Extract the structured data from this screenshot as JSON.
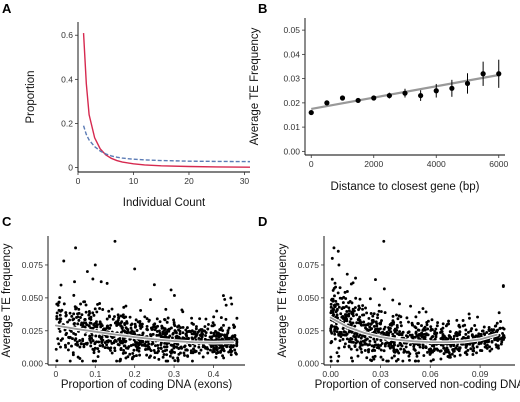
{
  "chart_data": [
    {
      "panel": "A",
      "type": "line",
      "title": "",
      "xlabel": "Individual Count",
      "ylabel": "Proportion",
      "xlim": [
        0,
        31
      ],
      "ylim": [
        -0.02,
        0.66
      ],
      "x_ticks": [
        0,
        10,
        20,
        30
      ],
      "y_ticks": [
        0.0,
        0.2,
        0.4,
        0.6
      ],
      "grid": false,
      "legend": "none",
      "series": [
        {
          "color": "#d6294f",
          "dash": "solid",
          "x": [
            1,
            1.5,
            2,
            3,
            4,
            5,
            6,
            7,
            8,
            10,
            12,
            15,
            20,
            25,
            31
          ],
          "y": [
            0.61,
            0.38,
            0.24,
            0.135,
            0.085,
            0.058,
            0.042,
            0.032,
            0.025,
            0.017,
            0.012,
            0.008,
            0.005,
            0.003,
            0.002
          ]
        },
        {
          "color": "#5b7bb5",
          "dash": "dashed",
          "x": [
            1,
            1.5,
            2,
            3,
            4,
            5,
            6,
            7,
            8,
            10,
            12,
            15,
            20,
            25,
            31
          ],
          "y": [
            0.19,
            0.15,
            0.125,
            0.095,
            0.075,
            0.062,
            0.053,
            0.047,
            0.043,
            0.038,
            0.035,
            0.032,
            0.029,
            0.028,
            0.027
          ]
        }
      ]
    },
    {
      "panel": "B",
      "type": "scatter",
      "title": "",
      "xlabel": "Distance to closest gene (bp)",
      "ylabel": "Average TE Frequency",
      "xlim": [
        -200,
        6200
      ],
      "ylim": [
        -0.0015,
        0.055
      ],
      "x_ticks": [
        0,
        2000,
        4000,
        6000
      ],
      "y_ticks": [
        0.0,
        0.01,
        0.02,
        0.03,
        0.04,
        0.05
      ],
      "y_tick_labels": [
        "0.00",
        "0.01",
        "0.02",
        "0.03",
        "0.04",
        "0.05"
      ],
      "grid": false,
      "legend": "none",
      "points": [
        {
          "x": 0,
          "y": 0.016,
          "err": 0.0005
        },
        {
          "x": 500,
          "y": 0.02,
          "err": 0.0006
        },
        {
          "x": 1000,
          "y": 0.022,
          "err": 0.0006
        },
        {
          "x": 1500,
          "y": 0.021,
          "err": 0.0007
        },
        {
          "x": 2000,
          "y": 0.022,
          "err": 0.0008
        },
        {
          "x": 2500,
          "y": 0.023,
          "err": 0.0012
        },
        {
          "x": 3000,
          "y": 0.024,
          "err": 0.0018
        },
        {
          "x": 3500,
          "y": 0.023,
          "err": 0.0022
        },
        {
          "x": 4000,
          "y": 0.025,
          "err": 0.0028
        },
        {
          "x": 4500,
          "y": 0.026,
          "err": 0.0035
        },
        {
          "x": 5000,
          "y": 0.028,
          "err": 0.0042
        },
        {
          "x": 5500,
          "y": 0.032,
          "err": 0.005
        },
        {
          "x": 6000,
          "y": 0.032,
          "err": 0.0058
        }
      ],
      "fit": {
        "x": [
          0,
          6000
        ],
        "y": [
          0.0175,
          0.0315
        ],
        "color": "#999999"
      }
    },
    {
      "panel": "C",
      "type": "scatter",
      "title": "",
      "xlabel": "Proportion of coding DNA (exons)",
      "ylabel": "Average TE frequency",
      "xlim": [
        -0.02,
        0.48
      ],
      "ylim": [
        -0.001,
        0.097
      ],
      "x_ticks": [
        0.0,
        0.1,
        0.2,
        0.3,
        0.4
      ],
      "y_ticks": [
        0.0,
        0.025,
        0.05,
        0.075
      ],
      "y_tick_labels": [
        "0.000",
        "0.025",
        "0.050",
        "0.075"
      ],
      "grid": false,
      "legend": "none",
      "n_points": 900,
      "highlight_points": [
        {
          "x": 0.15,
          "y": 0.093
        },
        {
          "x": 0.05,
          "y": 0.088
        },
        {
          "x": 0.02,
          "y": 0.078
        },
        {
          "x": 0.1,
          "y": 0.075
        },
        {
          "x": 0.08,
          "y": 0.07
        },
        {
          "x": 0.2,
          "y": 0.072
        },
        {
          "x": 0.25,
          "y": 0.06
        },
        {
          "x": 0.42,
          "y": 0.035
        }
      ],
      "trend_x": [
        0.0,
        0.05,
        0.1,
        0.15,
        0.2,
        0.25,
        0.3,
        0.35,
        0.4,
        0.45
      ],
      "trend_y": [
        0.029,
        0.0265,
        0.0243,
        0.0222,
        0.0202,
        0.0185,
        0.0172,
        0.0163,
        0.016,
        0.0163
      ],
      "trend_color": "#999999"
    },
    {
      "panel": "D",
      "type": "scatter",
      "title": "",
      "xlabel": "Proportion of conserved non-coding DNA",
      "ylabel": "Average TE frequency",
      "xlim": [
        -0.004,
        0.111
      ],
      "ylim": [
        -0.001,
        0.097
      ],
      "x_ticks": [
        0.0,
        0.03,
        0.06,
        0.09
      ],
      "x_tick_labels": [
        "0.00",
        "0.03",
        "0.06",
        "0.09"
      ],
      "y_ticks": [
        0.0,
        0.025,
        0.05,
        0.075
      ],
      "y_tick_labels": [
        "0.000",
        "0.025",
        "0.050",
        "0.075"
      ],
      "grid": false,
      "legend": "none",
      "n_points": 900,
      "highlight_points": [
        {
          "x": 0.032,
          "y": 0.093
        },
        {
          "x": 0.002,
          "y": 0.088
        },
        {
          "x": 0.001,
          "y": 0.08
        },
        {
          "x": 0.005,
          "y": 0.075
        },
        {
          "x": 0.01,
          "y": 0.068
        },
        {
          "x": 0.015,
          "y": 0.065
        },
        {
          "x": 0.1,
          "y": 0.025
        }
      ],
      "trend_x": [
        0.0,
        0.01,
        0.02,
        0.03,
        0.04,
        0.05,
        0.06,
        0.07,
        0.08,
        0.09,
        0.1
      ],
      "trend_y": [
        0.035,
        0.028,
        0.0235,
        0.0203,
        0.0182,
        0.017,
        0.0164,
        0.0163,
        0.0168,
        0.0185,
        0.022
      ],
      "trend_color": "#999999"
    }
  ],
  "panel_labels": {
    "a": "A",
    "b": "B",
    "c": "C",
    "d": "D"
  },
  "colors": {
    "point": "#000000",
    "axis": "#000000",
    "red_curve": "#d6294f",
    "blue_curve": "#5b7bb5",
    "fit_line": "#999999"
  }
}
